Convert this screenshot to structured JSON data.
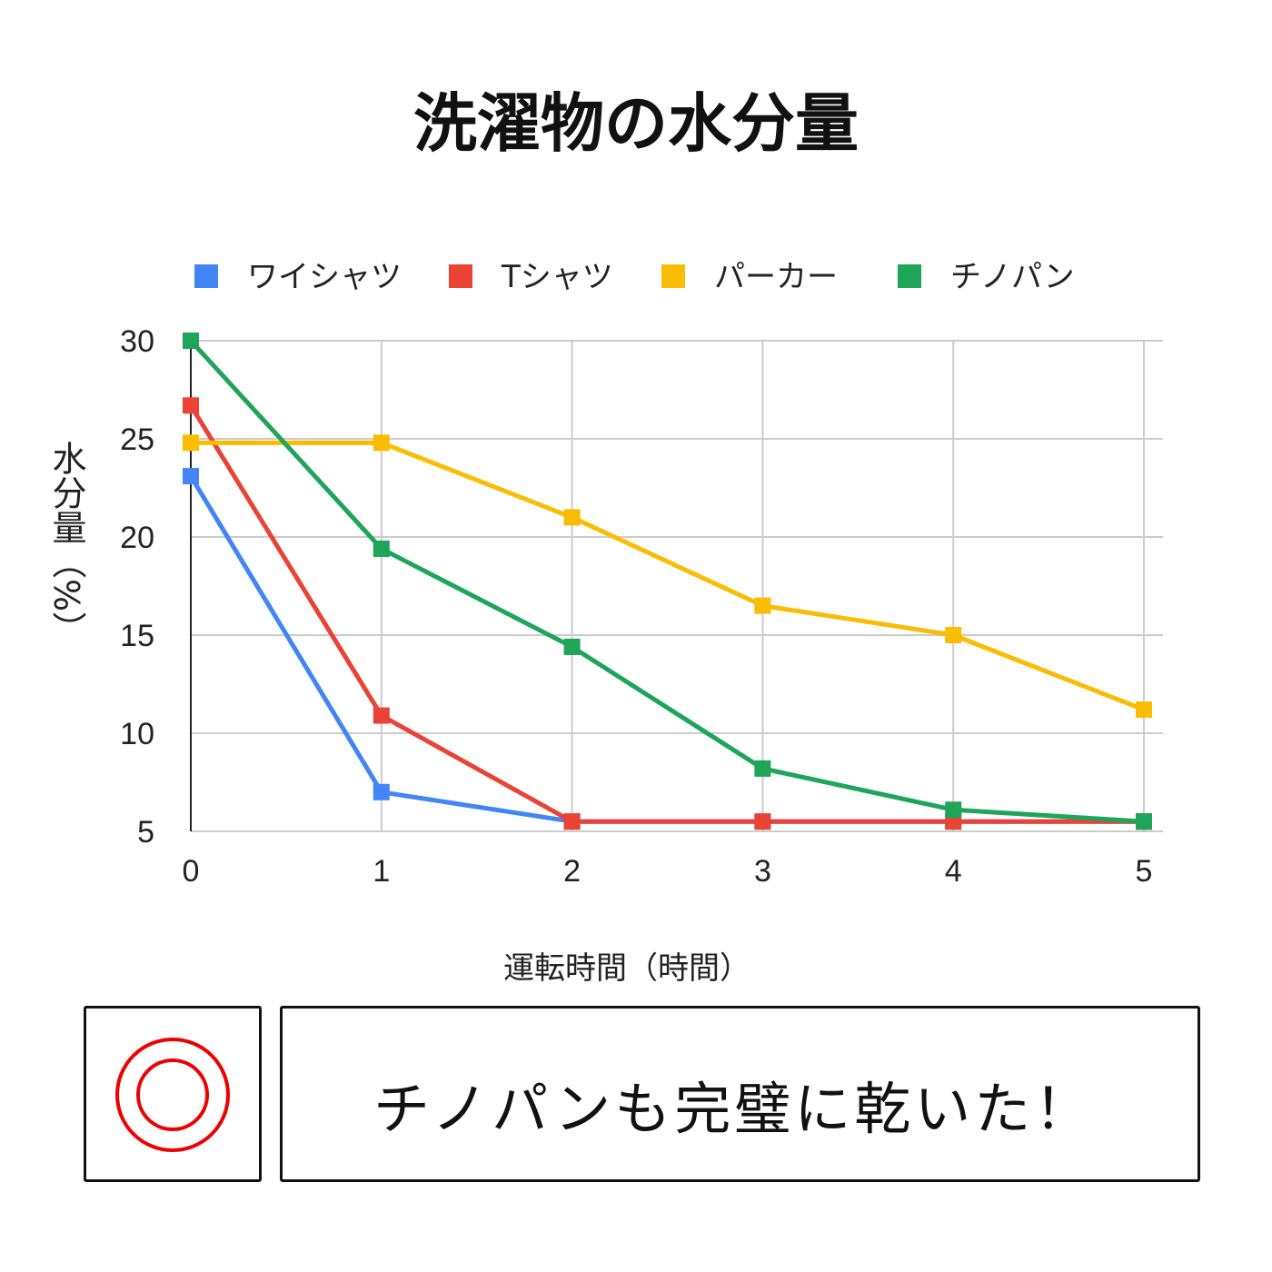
{
  "title": "洗濯物の水分量",
  "chart_data": {
    "type": "line",
    "title": "洗濯物の水分量",
    "xlabel": "運転時間（時間）",
    "ylabel": "水分量（%）",
    "x": [
      0,
      1,
      2,
      3,
      4,
      5
    ],
    "xlim": [
      0,
      5
    ],
    "ylim": [
      5,
      30
    ],
    "yticks": [
      5,
      10,
      15,
      20,
      25,
      30
    ],
    "grid": true,
    "legend": "top",
    "marker": "square",
    "series": [
      {
        "name": "ワイシャツ",
        "color": "#4285f4",
        "values": [
          23.1,
          7.0,
          5.5,
          5.5,
          5.5,
          5.5
        ]
      },
      {
        "name": "Tシャツ",
        "color": "#ea4335",
        "values": [
          26.7,
          10.9,
          5.5,
          5.5,
          5.5,
          5.5
        ]
      },
      {
        "name": "パーカー",
        "color": "#fbbc04",
        "values": [
          24.8,
          24.8,
          21.0,
          16.5,
          15.0,
          11.2
        ]
      },
      {
        "name": "チノパン",
        "color": "#1ea55a",
        "values": [
          30.0,
          19.4,
          14.4,
          8.2,
          6.1,
          5.5
        ]
      }
    ]
  },
  "stamp": {
    "icon": "double-circle-icon",
    "color": "#ee0000"
  },
  "message": "チノパンも完璧に乾いた！"
}
